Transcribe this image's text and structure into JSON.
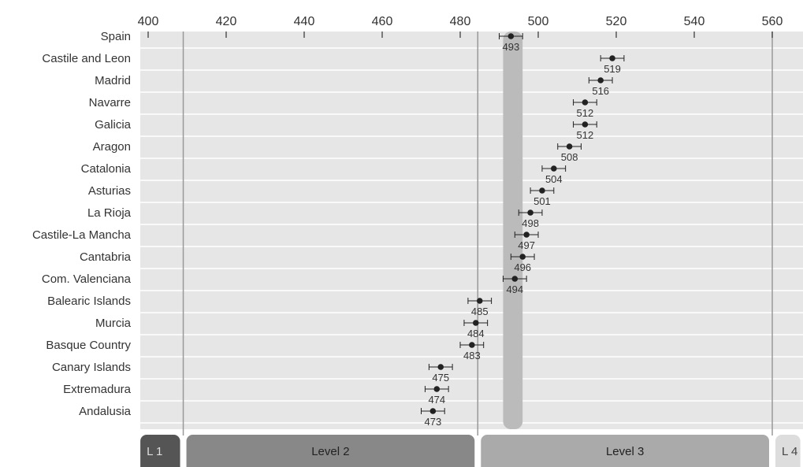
{
  "chart_data": {
    "type": "scatter",
    "title": "",
    "xlabel": "",
    "ylabel": "",
    "xlim": [
      400,
      560
    ],
    "xticks": [
      "400",
      "420",
      "440",
      "460",
      "480",
      "500",
      "520",
      "540",
      "560"
    ],
    "grid": true,
    "reference_band": {
      "center": 493,
      "low": 491,
      "high": 496
    },
    "level_bands": [
      {
        "label": "L 1",
        "from": 398,
        "to": 409,
        "color": "#555555",
        "text_color": "#dddddd"
      },
      {
        "label": "Level 2",
        "from": 409,
        "to": 484.5,
        "color": "#888888",
        "text_color": "#222222"
      },
      {
        "label": "Level 3",
        "from": 484.5,
        "to": 560,
        "color": "#aaaaaa",
        "text_color": "#222222"
      },
      {
        "label": "L 4",
        "from": 560,
        "to": 568,
        "color": "#dddddd",
        "text_color": "#444444"
      }
    ],
    "level_cutoffs": [
      409,
      484.5,
      560
    ],
    "categories": [
      "Spain",
      "Castile and Leon",
      "Madrid",
      "Navarre",
      "Galicia",
      "Aragon",
      "Catalonia",
      "Asturias",
      "La Rioja",
      "Castile-La Mancha",
      "Cantabria",
      "Com. Valenciana",
      "Balearic Islands",
      "Murcia",
      "Basque Country",
      "Canary Islands",
      "Extremadura",
      "Andalusia"
    ],
    "values": [
      493,
      519,
      516,
      512,
      512,
      508,
      504,
      501,
      498,
      497,
      496,
      494,
      485,
      484,
      483,
      475,
      474,
      473
    ],
    "value_labels": [
      "493",
      "519",
      "516",
      "512",
      "512",
      "508",
      "504",
      "501",
      "498",
      "497",
      "496",
      "494",
      "485",
      "484",
      "483",
      "475",
      "474",
      "473"
    ],
    "errors": [
      3,
      3,
      3,
      3,
      3,
      3,
      3,
      3,
      3,
      3,
      3,
      3,
      3,
      3,
      3,
      3,
      3,
      3
    ]
  },
  "colors": {
    "plot_bg": "#e6e6e6",
    "grid": "#ffffff",
    "reference_band": "#bbbbbb",
    "cutoff_line": "#999999",
    "point": "#222222"
  }
}
